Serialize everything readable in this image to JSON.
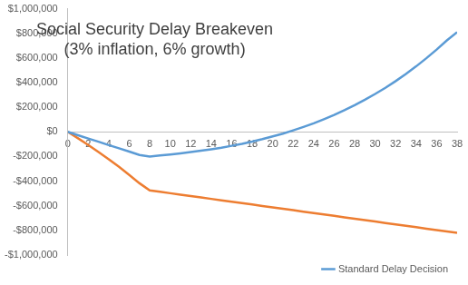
{
  "chart_data": {
    "type": "line",
    "title": "Social Security Delay Breakeven\n(3% inflation, 6% growth)",
    "x": [
      0,
      1,
      2,
      3,
      4,
      5,
      6,
      7,
      8,
      9,
      10,
      11,
      12,
      13,
      14,
      15,
      16,
      17,
      18,
      19,
      20,
      21,
      22,
      23,
      24,
      25,
      26,
      27,
      28,
      29,
      30,
      31,
      32,
      33,
      34,
      35,
      36,
      37,
      38
    ],
    "series": [
      {
        "name": "Standard Delay Decision",
        "color": "#5b9bd5",
        "values": [
          0,
          -27000,
          -54000,
          -80000,
          -107000,
          -133000,
          -160000,
          -187000,
          -200000,
          -192000,
          -183000,
          -174000,
          -164000,
          -153000,
          -141000,
          -128000,
          -113000,
          -97000,
          -79000,
          -59000,
          -37000,
          -14000,
          12000,
          40000,
          70000,
          103000,
          138000,
          176000,
          217000,
          261000,
          308000,
          358000,
          412000,
          470000,
          532000,
          598000,
          668000,
          743000,
          810000
        ]
      },
      {
        "color": "#ed7d31",
        "values": [
          0,
          -52000,
          -106000,
          -163000,
          -222000,
          -284000,
          -349000,
          -417000,
          -475000,
          -486500,
          -498000,
          -509500,
          -521000,
          -532500,
          -544000,
          -555500,
          -567000,
          -578500,
          -590000,
          -601500,
          -613000,
          -624500,
          -636000,
          -647500,
          -659000,
          -670500,
          -682000,
          -693500,
          -705000,
          -716500,
          -728000,
          -739500,
          -751000,
          -762500,
          -774000,
          -785500,
          -797000,
          -808500,
          -820000
        ]
      }
    ],
    "xlim": [
      0,
      38
    ],
    "xticks": [
      0,
      2,
      4,
      6,
      8,
      10,
      12,
      14,
      16,
      18,
      20,
      22,
      24,
      26,
      28,
      30,
      32,
      34,
      36,
      38
    ],
    "ylim": [
      -1000000,
      1000000
    ],
    "yticks": [
      {
        "value": -1000000,
        "label": "-$1,000,000"
      },
      {
        "value": -800000,
        "label": "-$800,000"
      },
      {
        "value": -600000,
        "label": "-$600,000"
      },
      {
        "value": -400000,
        "label": "-$400,000"
      },
      {
        "value": -200000,
        "label": "-$200,000"
      },
      {
        "value": 0,
        "label": "$0"
      },
      {
        "value": 200000,
        "label": "$200,000"
      },
      {
        "value": 400000,
        "label": "$400,000"
      },
      {
        "value": 600000,
        "label": "$600,000"
      },
      {
        "value": 800000,
        "label": "$800,000"
      },
      {
        "value": 1000000,
        "label": "$1,000,000"
      }
    ],
    "grid": false,
    "legend": "lower right"
  }
}
